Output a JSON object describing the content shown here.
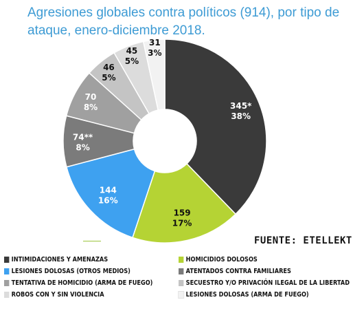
{
  "chart_data": {
    "type": "pie",
    "donut": true,
    "title": "Agresiones globales contra políticos (914), por tipo de ataque,  enero-diciembre 2018.",
    "total": 914,
    "slices": [
      {
        "name": "INTIMIDACIONES Y AMENAZAS",
        "value": 345,
        "value_label": "345*",
        "percent_label": "38%",
        "color": "#3a3a3a",
        "text_color": "#ffffff"
      },
      {
        "name": "HOMICIDIOS DOLOSOS",
        "value": 159,
        "value_label": "159",
        "percent_label": "17%",
        "color": "#b5d334",
        "text_color": "#111111"
      },
      {
        "name": "LESIONES DOLOSAS (OTROS MEDIOS)",
        "value": 144,
        "value_label": "144",
        "percent_label": "16%",
        "color": "#3ea1f0",
        "text_color": "#ffffff"
      },
      {
        "name": "ATENTADOS CONTRA FAMILIARES",
        "value": 74,
        "value_label": "74**",
        "percent_label": "8%",
        "color": "#7b7b7b",
        "text_color": "#ffffff"
      },
      {
        "name": "TENTATIVA DE HOMICIDIO (ARMA DE FUEGO)",
        "value": 70,
        "value_label": "70",
        "percent_label": "8%",
        "color": "#a0a0a0",
        "text_color": "#ffffff"
      },
      {
        "name": "SECUESTRO Y/O PRIVACIÓN ILEGAL DE LA LIBERTAD",
        "value": 46,
        "value_label": "46",
        "percent_label": "5%",
        "color": "#c4c4c4",
        "text_color": "#111111"
      },
      {
        "name": "ROBOS CON Y SIN VIOLENCIA",
        "value": 45,
        "value_label": "45",
        "percent_label": "5%",
        "color": "#dcdcdc",
        "text_color": "#111111"
      },
      {
        "name": "LESIONES DOLOSAS (ARMA DE FUEGO)",
        "value": 31,
        "value_label": "31",
        "percent_label": "3%",
        "color": "#f2f2f2",
        "text_color": "#111111"
      }
    ],
    "legend_placement": "bottom",
    "legend": [
      {
        "label": "INTIMIDACIONES Y AMENAZAS",
        "color": "#3a3a3a"
      },
      {
        "label": "HOMICIDIOS DOLOSOS",
        "color": "#b5d334"
      },
      {
        "label": "LESIONES DOLOSAS (OTROS MEDIOS)",
        "color": "#3ea1f0"
      },
      {
        "label": "ATENTADOS CONTRA FAMILIARES",
        "color": "#7b7b7b"
      },
      {
        "label": "TENTATIVA DE HOMICIDIO (ARMA DE FUEGO)",
        "color": "#a0a0a0"
      },
      {
        "label": "SECUESTRO Y/O PRIVACIÓN ILEGAL DE LA LIBERTAD",
        "color": "#c4c4c4"
      },
      {
        "label": "ROBOS CON Y SIN VIOLENCIA",
        "color": "#dcdcdc"
      },
      {
        "label": "LESIONES DOLOSAS (ARMA DE FUEGO)",
        "color": "#f2f2f2"
      }
    ],
    "source": "FUENTE: ETELLEKT"
  }
}
